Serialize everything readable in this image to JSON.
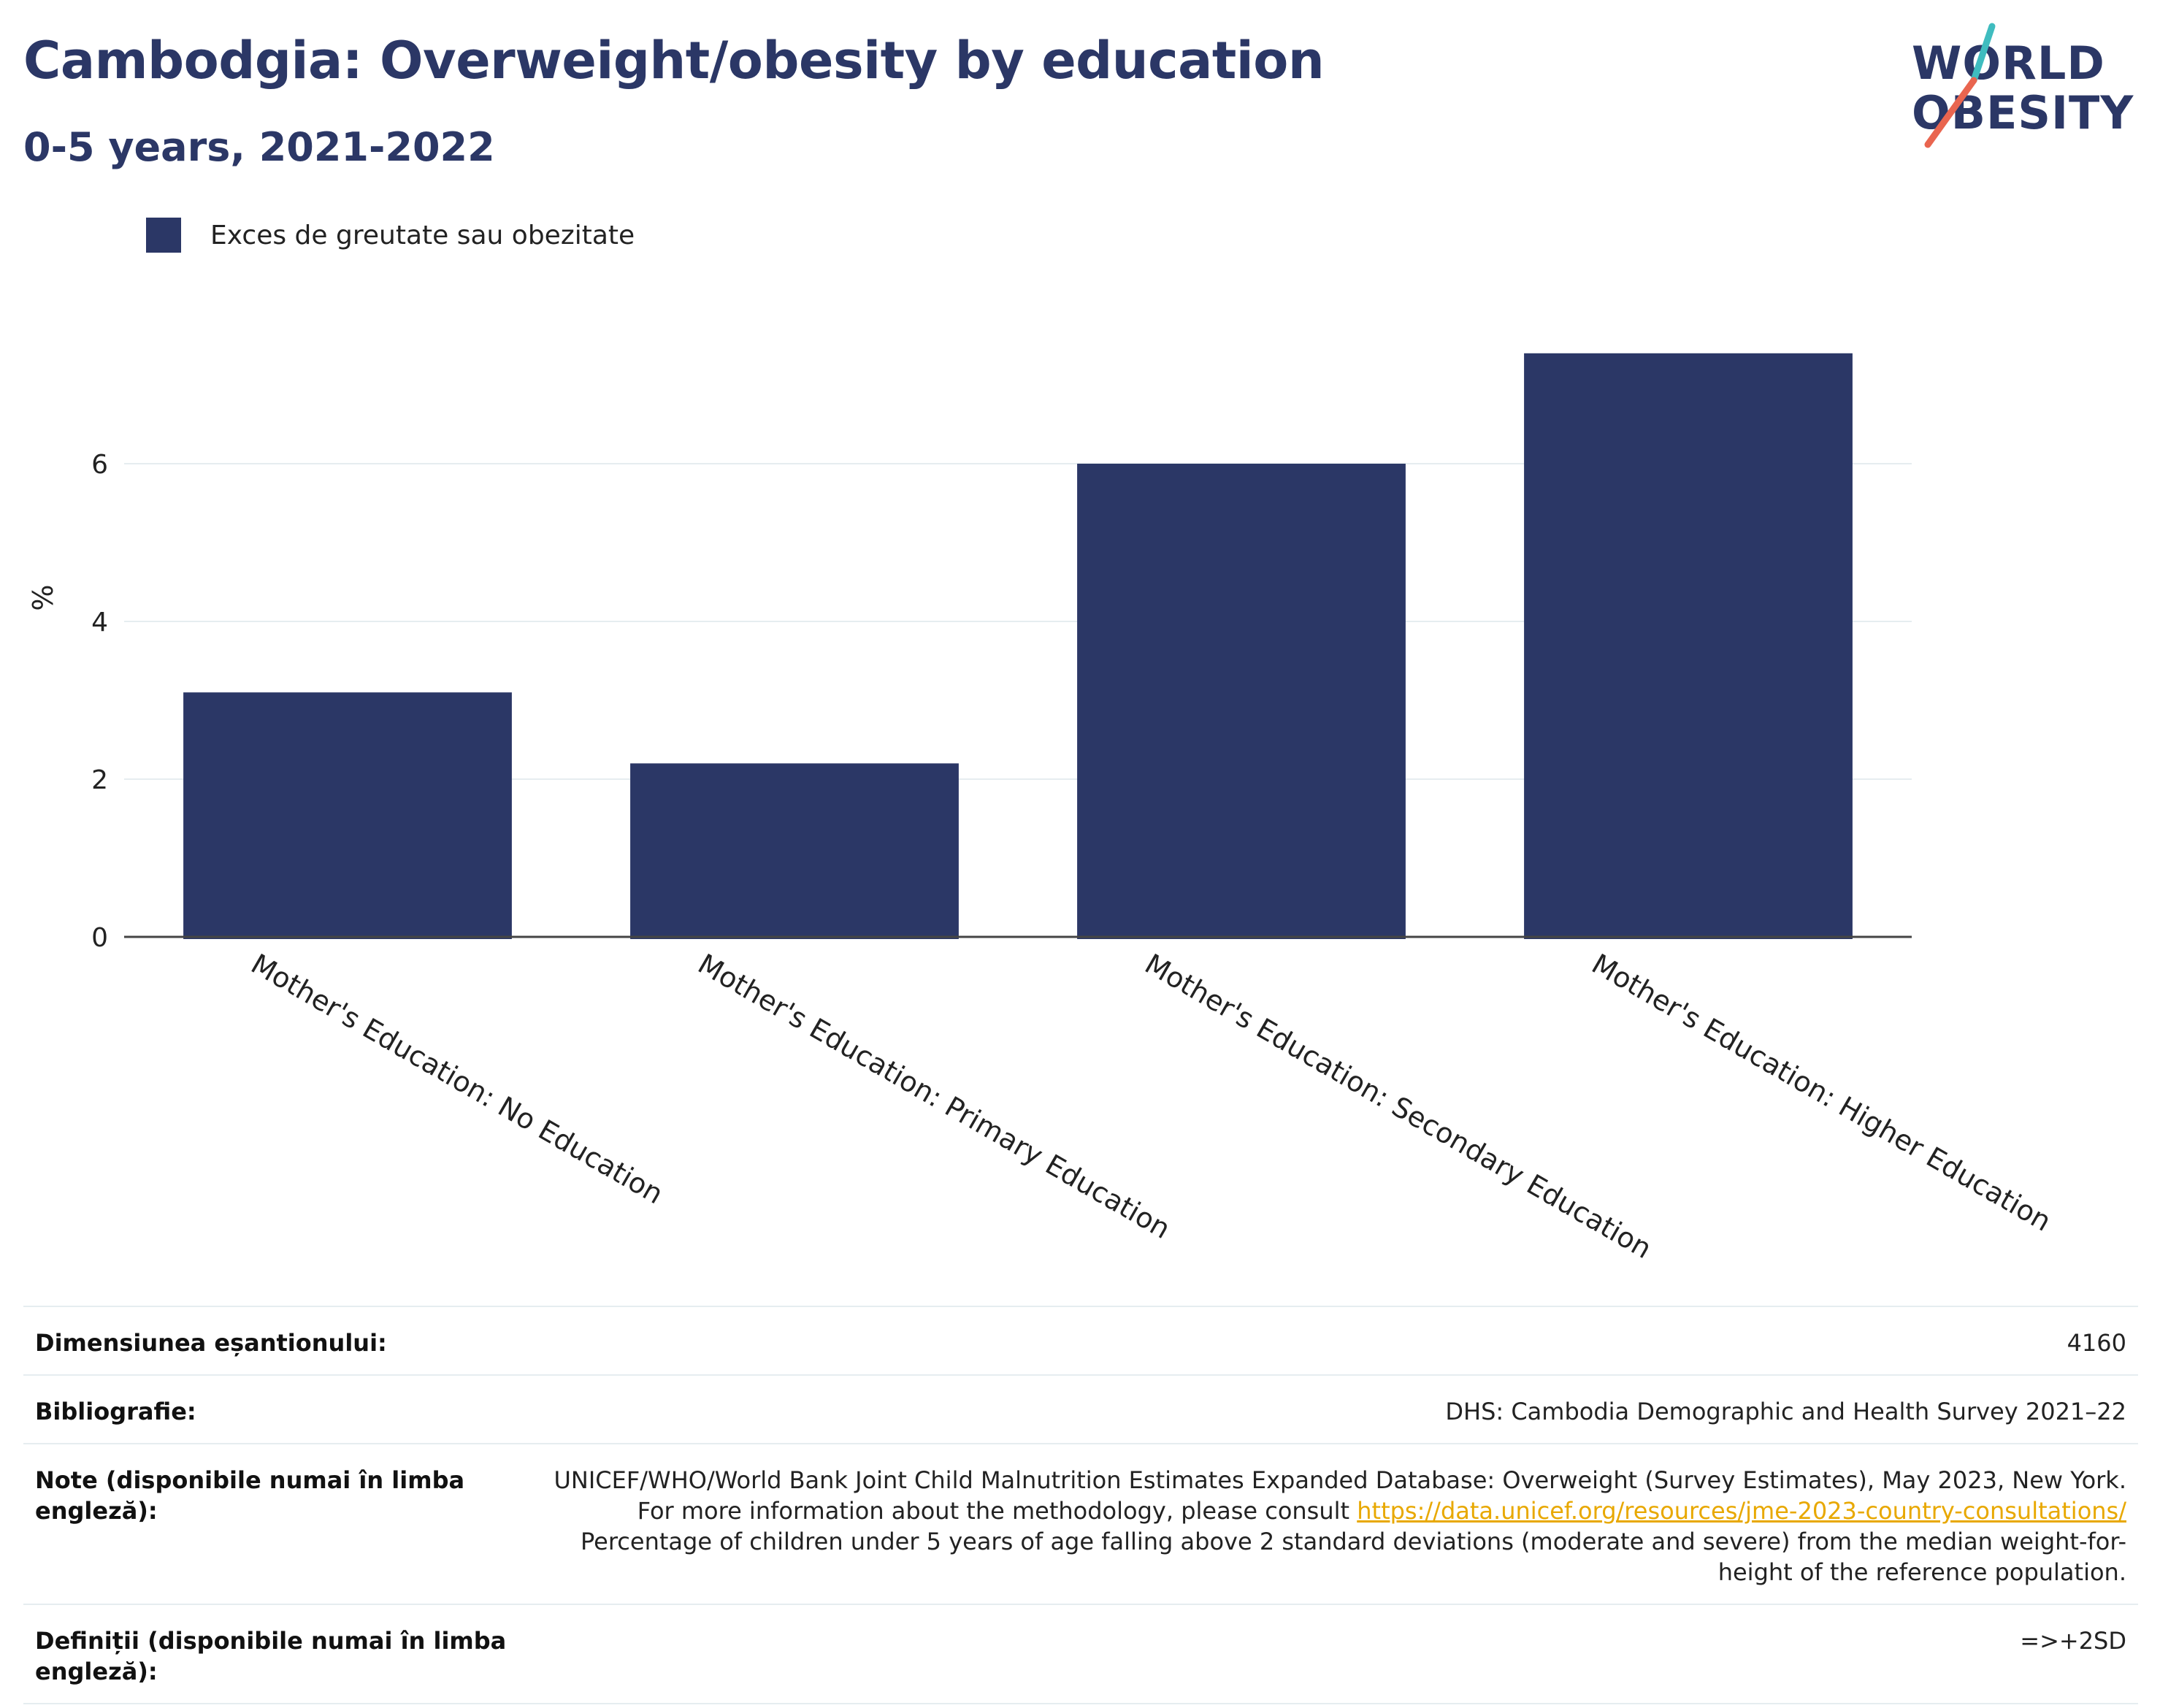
{
  "header": {
    "title": "Cambodgia: Overweight/obesity by education",
    "subtitle": "0-5 years, 2021-2022"
  },
  "logo": {
    "line1": "WORLD",
    "line2": "OBESITY"
  },
  "colors": {
    "bar": "#2b3766",
    "title": "#2b3766",
    "gridline": "#e6edf0",
    "axis": "#444444",
    "link": "#e8a800",
    "logo_teal": "#3fbcbf",
    "logo_red": "#e9654f"
  },
  "chart_data": {
    "type": "bar",
    "title": "Cambodgia: Overweight/obesity by education",
    "subtitle": "0-5 years, 2021-2022",
    "ylabel": "%",
    "xlabel": "",
    "ylim": [
      0,
      8
    ],
    "yticks": [
      0,
      2,
      4,
      6
    ],
    "grid": true,
    "legend_position": "top-left",
    "categories": [
      "Mother's Education: No Education",
      "Mother's Education: Primary Education",
      "Mother's Education: Secondary Education",
      "Mother's Education: Higher Education"
    ],
    "series": [
      {
        "name": "Exces de greutate sau obezitate",
        "values": [
          3.1,
          2.2,
          6.0,
          7.4
        ]
      }
    ]
  },
  "info": {
    "sample_label": "Dimensiunea eșantionului:",
    "sample_value": "4160",
    "bibliography_label": "Bibliografie:",
    "bibliography_value": "DHS: Cambodia Demographic and Health Survey 2021–22",
    "notes_label": "Note (disponibile numai în limba engleză):",
    "notes_text_1": "UNICEF/WHO/World Bank Joint Child Malnutrition Estimates Expanded Database: Overweight (Survey Estimates), May 2023, New York. For more information about the methodology, please consult",
    "notes_link": "https://data.unicef.org/resources/jme-2023-country-consultations/",
    "notes_text_2": "Percentage of children under 5 years of age falling above 2 standard deviations (moderate and severe) from the median weight-for-height of the reference population.",
    "definitions_label": "Definiții (disponibile numai în limba engleză):",
    "definitions_value": "=>+2SD"
  }
}
